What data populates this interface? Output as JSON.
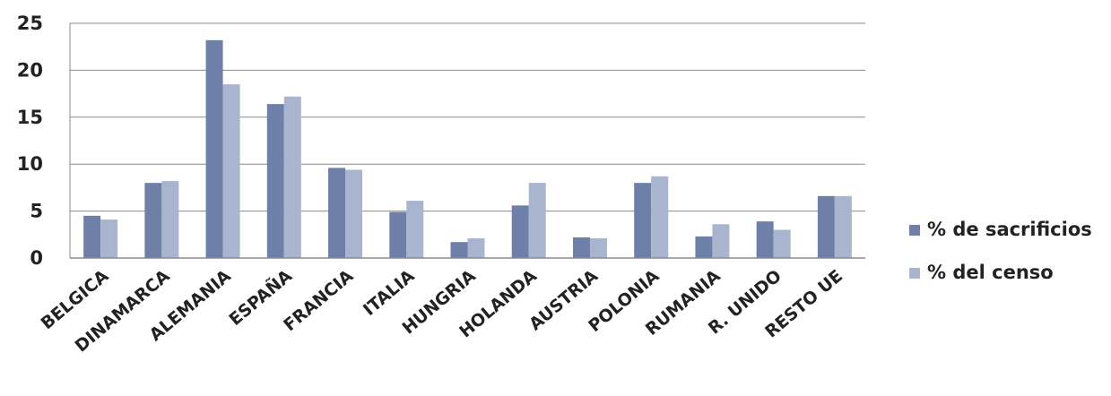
{
  "chart_data": {
    "type": "bar",
    "categories": [
      "BELGICA",
      "DINAMARCA",
      "ALEMANIA",
      "ESPAÑA",
      "FRANCIA",
      "ITALIA",
      "HUNGRIA",
      "HOLANDA",
      "AUSTRIA",
      "POLONIA",
      "RUMANIA",
      "R. UNIDO",
      "RESTO UE"
    ],
    "series": [
      {
        "name": "% de sacrificios",
        "color": "#6e80a8",
        "values": [
          4.5,
          8.0,
          23.2,
          16.4,
          9.6,
          4.9,
          1.7,
          5.6,
          2.2,
          8.0,
          2.3,
          3.9,
          6.6
        ]
      },
      {
        "name": "% del censo",
        "color": "#a9b4cf",
        "values": [
          4.1,
          8.2,
          18.5,
          17.2,
          9.4,
          6.1,
          2.1,
          8.0,
          2.1,
          8.7,
          3.6,
          3.0,
          6.6
        ]
      }
    ],
    "ylim": [
      0,
      25
    ],
    "yticks": [
      0,
      5,
      10,
      15,
      20,
      25
    ],
    "grid": true,
    "legend_position": "right",
    "gridline_color": "#8a8a8a"
  }
}
